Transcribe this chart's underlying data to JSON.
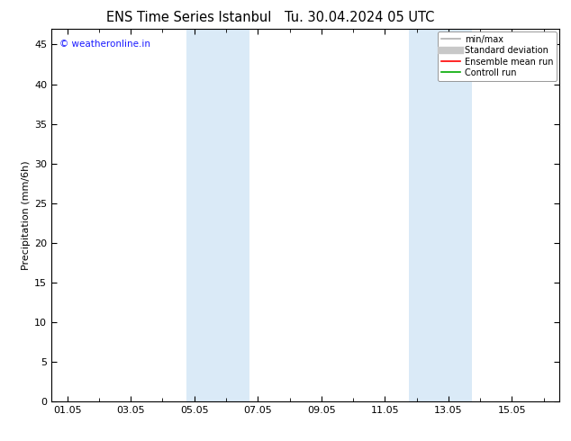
{
  "title": "ENS Time Series Istanbul",
  "title2": "Tu. 30.04.2024 05 UTC",
  "ylabel": "Precipitation (mm/6h)",
  "ylim": [
    0,
    47
  ],
  "yticks": [
    0,
    5,
    10,
    15,
    20,
    25,
    30,
    35,
    40,
    45
  ],
  "xtick_labels": [
    "01.05",
    "03.05",
    "05.05",
    "07.05",
    "09.05",
    "11.05",
    "13.05",
    "15.05"
  ],
  "xtick_positions": [
    0,
    2,
    4,
    6,
    8,
    10,
    12,
    14
  ],
  "xmin": -0.5,
  "xmax": 15.5,
  "shade_regions": [
    {
      "xmin": 3.75,
      "xmax": 5.75,
      "color": "#daeaf7"
    },
    {
      "xmin": 10.75,
      "xmax": 12.75,
      "color": "#daeaf7"
    }
  ],
  "watermark": "© weatheronline.in",
  "watermark_color": "#1a1aff",
  "bg_color": "#ffffff",
  "plot_bg_color": "#ffffff",
  "legend_items": [
    {
      "label": "min/max",
      "color": "#b0b0b0",
      "lw": 1.2
    },
    {
      "label": "Standard deviation",
      "color": "#c8c8c8",
      "lw": 6
    },
    {
      "label": "Ensemble mean run",
      "color": "#ff0000",
      "lw": 1.2
    },
    {
      "label": "Controll run",
      "color": "#00aa00",
      "lw": 1.2
    }
  ],
  "title_fontsize": 10.5,
  "ylabel_fontsize": 8,
  "tick_fontsize": 8,
  "watermark_fontsize": 7.5,
  "legend_fontsize": 7
}
